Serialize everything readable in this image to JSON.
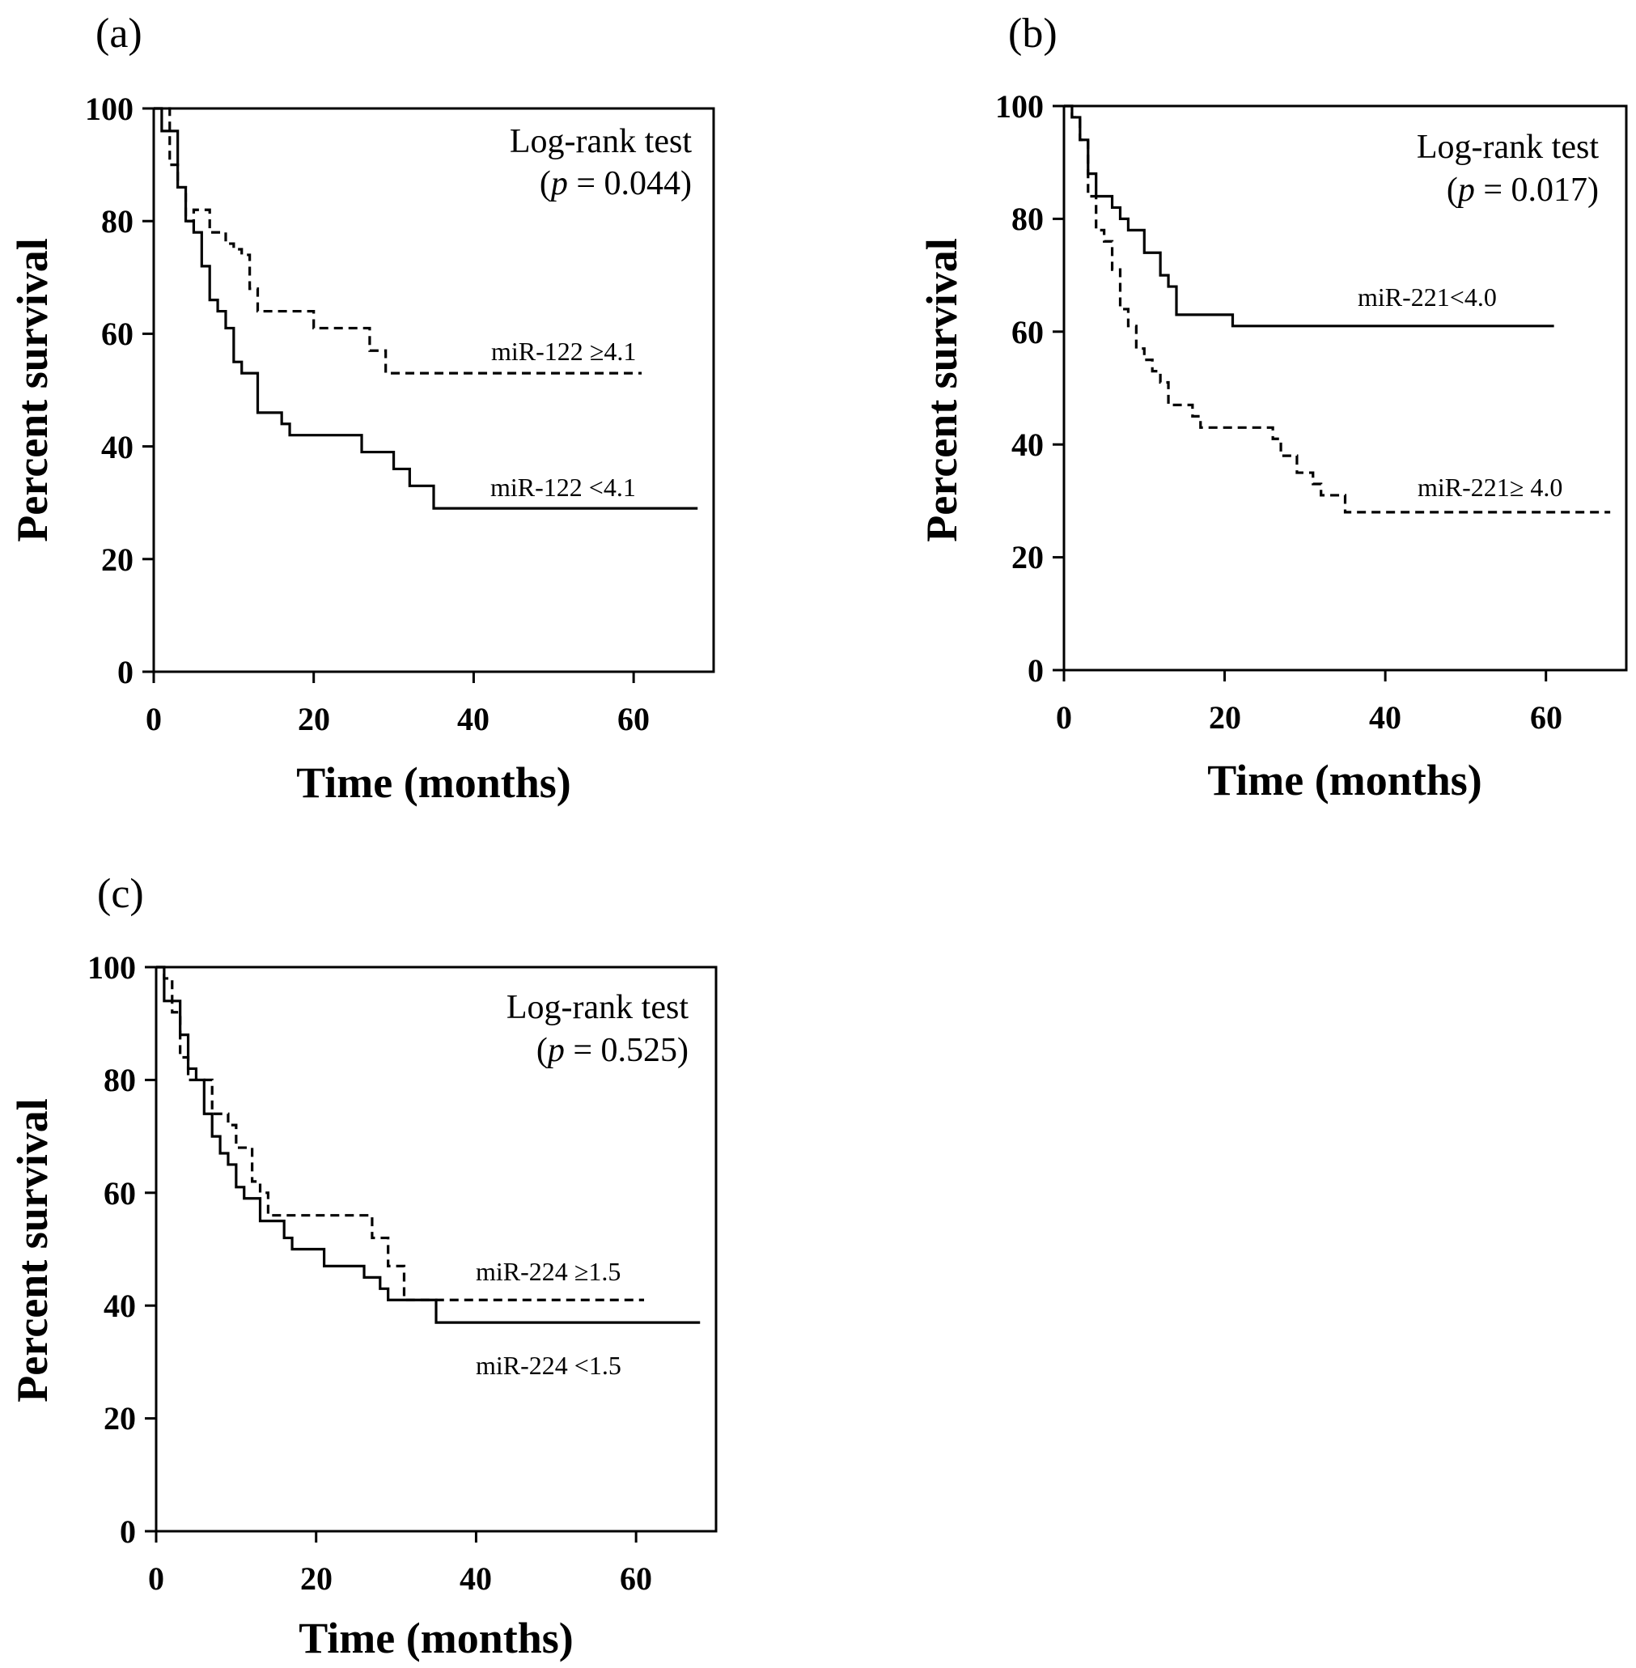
{
  "chart_data": [
    {
      "type": "line",
      "panel_label": "(a)",
      "xlabel": "Time (months)",
      "ylabel": "Percent survival",
      "xlim": [
        0,
        70
      ],
      "ylim": [
        0,
        100
      ],
      "xticks": [
        0,
        20,
        40,
        60
      ],
      "yticks": [
        0,
        20,
        40,
        60,
        80,
        100
      ],
      "test_title": "Log-rank test",
      "test_p_prefix": "(",
      "test_p_symbol": "p",
      "test_p_value": " = 0.044)",
      "series": [
        {
          "name": "miR-122 ≥4.1",
          "style": "dashed",
          "x": [
            0,
            1,
            2,
            3,
            4,
            5,
            7,
            8,
            9,
            10,
            11,
            12,
            13,
            15,
            18,
            20,
            27,
            29,
            61
          ],
          "y": [
            100,
            100,
            90,
            86,
            80,
            82,
            78,
            78,
            76,
            75,
            74,
            68,
            64,
            64,
            64,
            61,
            57,
            53,
            53
          ]
        },
        {
          "name": "miR-122 <4.1",
          "style": "solid",
          "x": [
            0,
            1,
            3,
            4,
            5,
            6,
            7,
            8,
            9,
            10,
            11,
            13,
            16,
            17,
            20,
            26,
            30,
            32,
            35,
            68
          ],
          "y": [
            100,
            96,
            86,
            80,
            78,
            72,
            66,
            64,
            61,
            55,
            53,
            46,
            44,
            42,
            42,
            39,
            36,
            33,
            29,
            29
          ]
        }
      ]
    },
    {
      "type": "line",
      "panel_label": "(b)",
      "xlabel": "Time (months)",
      "ylabel": "Percent survival",
      "xlim": [
        0,
        70
      ],
      "ylim": [
        0,
        100
      ],
      "xticks": [
        0,
        20,
        40,
        60
      ],
      "yticks": [
        0,
        20,
        40,
        60,
        80,
        100
      ],
      "test_title": "Log-rank test",
      "test_p_prefix": "(",
      "test_p_symbol": "p",
      "test_p_value": " = 0.017)",
      "series": [
        {
          "name": "miR-221<4.0",
          "style": "solid",
          "x": [
            0,
            1,
            2,
            3,
            4,
            6,
            7,
            8,
            10,
            12,
            13,
            14,
            21,
            61
          ],
          "y": [
            100,
            98,
            94,
            88,
            84,
            82,
            80,
            78,
            74,
            70,
            68,
            63,
            61,
            61
          ]
        },
        {
          "name": "miR-221≥ 4.0",
          "style": "dashed",
          "x": [
            0,
            1,
            2,
            3,
            4,
            5,
            6,
            7,
            8,
            9,
            10,
            11,
            12,
            13,
            16,
            17,
            25,
            26,
            27,
            29,
            31,
            32,
            35,
            68
          ],
          "y": [
            100,
            98,
            94,
            84,
            78,
            76,
            71,
            64,
            61,
            57,
            55,
            53,
            51,
            47,
            45,
            43,
            43,
            41,
            38,
            35,
            33,
            31,
            28,
            28
          ]
        }
      ]
    },
    {
      "type": "line",
      "panel_label": "(c)",
      "xlabel": "Time (months)",
      "ylabel": "Percent survival",
      "xlim": [
        0,
        70
      ],
      "ylim": [
        0,
        100
      ],
      "xticks": [
        0,
        20,
        40,
        60
      ],
      "yticks": [
        0,
        20,
        40,
        60,
        80,
        100
      ],
      "test_title": "Log-rank test",
      "test_p_prefix": "(",
      "test_p_symbol": "p",
      "test_p_value": " = 0.525)",
      "series": [
        {
          "name": "miR-224 ≥1.5",
          "style": "dashed",
          "x": [
            0,
            1,
            2,
            3,
            4,
            6,
            7,
            9,
            10,
            11,
            12,
            13,
            14,
            27,
            29,
            31,
            61
          ],
          "y": [
            100,
            98,
            92,
            84,
            80,
            80,
            74,
            72,
            68,
            68,
            62,
            60,
            56,
            52,
            47,
            41,
            41
          ]
        },
        {
          "name": "miR-224 <1.5",
          "style": "solid",
          "x": [
            0,
            1,
            3,
            4,
            5,
            6,
            7,
            8,
            9,
            10,
            11,
            13,
            16,
            17,
            21,
            26,
            28,
            29,
            35,
            68
          ],
          "y": [
            100,
            94,
            88,
            82,
            80,
            74,
            70,
            67,
            65,
            61,
            59,
            55,
            52,
            50,
            47,
            45,
            43,
            41,
            37,
            37
          ]
        }
      ]
    }
  ]
}
